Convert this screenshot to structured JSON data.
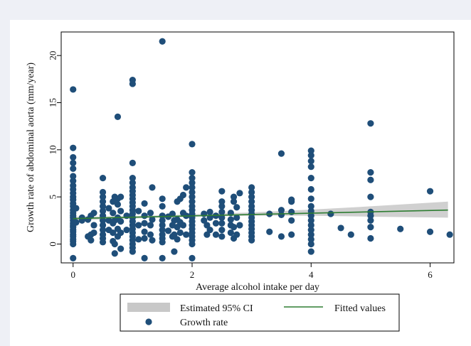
{
  "chart_data": {
    "type": "scatter",
    "xlabel": "Average alcohol intake per day",
    "ylabel": "Growth rate of abdominal aorta (mm/year)",
    "xlim": [
      -0.2,
      6.4
    ],
    "ylim": [
      -2,
      22.5
    ],
    "xticks": [
      "0",
      "2",
      "4",
      "6"
    ],
    "yticks": [
      "0",
      "5",
      "10",
      "15",
      "20"
    ],
    "xtick_values": [
      0,
      2,
      4,
      6
    ],
    "ytick_values": [
      0,
      5,
      10,
      15,
      20
    ],
    "grid": false,
    "legend_position": "bottom",
    "colors": {
      "points": "#1f4e79",
      "ci_band": "#c8c8c8",
      "fitted_line": "#2e7d32"
    },
    "legend": [
      {
        "label": "Estimated 95% CI",
        "kind": "band"
      },
      {
        "label": "Fitted values",
        "kind": "line"
      },
      {
        "label": "Growth rate",
        "kind": "point"
      }
    ],
    "fitted_line": {
      "x": [
        0,
        6.3
      ],
      "y": [
        2.7,
        3.6
      ]
    },
    "ci_band": {
      "x": [
        0,
        1,
        2,
        3,
        4,
        5,
        6.3
      ],
      "lower": [
        2.5,
        2.7,
        2.9,
        3.0,
        3.0,
        2.9,
        2.8
      ],
      "upper": [
        2.9,
        2.95,
        3.15,
        3.35,
        3.65,
        4.0,
        4.5
      ]
    },
    "series": [
      {
        "name": "Growth rate",
        "points": [
          [
            0,
            -1.5
          ],
          [
            0,
            0
          ],
          [
            0,
            0.3
          ],
          [
            0,
            0.5
          ],
          [
            0,
            0.8
          ],
          [
            0,
            1.0
          ],
          [
            0,
            1.3
          ],
          [
            0,
            1.5
          ],
          [
            0,
            1.8
          ],
          [
            0,
            2.0
          ],
          [
            0,
            2.2
          ],
          [
            0,
            2.5
          ],
          [
            0,
            2.8
          ],
          [
            0,
            3.0
          ],
          [
            0,
            3.3
          ],
          [
            0,
            3.6
          ],
          [
            0,
            4.0
          ],
          [
            0,
            4.3
          ],
          [
            0,
            4.7
          ],
          [
            0,
            5.0
          ],
          [
            0,
            5.4
          ],
          [
            0,
            5.8
          ],
          [
            0,
            6.2
          ],
          [
            0,
            6.7
          ],
          [
            0,
            7.2
          ],
          [
            0,
            8.0
          ],
          [
            0,
            8.6
          ],
          [
            0,
            9.2
          ],
          [
            0,
            10.2
          ],
          [
            0,
            16.4
          ],
          [
            0.05,
            2.3
          ],
          [
            0.05,
            3.8
          ],
          [
            0.15,
            2.5
          ],
          [
            0.15,
            2.8
          ],
          [
            0.25,
            2.6
          ],
          [
            0.25,
            0.8
          ],
          [
            0.3,
            0.4
          ],
          [
            0.3,
            1.0
          ],
          [
            0.3,
            3.0
          ],
          [
            0.35,
            2.0
          ],
          [
            0.35,
            3.3
          ],
          [
            0.35,
            1.2
          ],
          [
            0.5,
            0.2
          ],
          [
            0.5,
            0.6
          ],
          [
            0.5,
            1.0
          ],
          [
            0.5,
            1.5
          ],
          [
            0.5,
            2.0
          ],
          [
            0.5,
            2.5
          ],
          [
            0.5,
            3.0
          ],
          [
            0.5,
            3.5
          ],
          [
            0.5,
            4.0
          ],
          [
            0.5,
            4.5
          ],
          [
            0.5,
            5.0
          ],
          [
            0.5,
            5.5
          ],
          [
            0.5,
            7.0
          ],
          [
            0.6,
            1.5
          ],
          [
            0.6,
            2.5
          ],
          [
            0.6,
            3.8
          ],
          [
            0.67,
            0.3
          ],
          [
            0.67,
            1.2
          ],
          [
            0.67,
            2.2
          ],
          [
            0.67,
            3.3
          ],
          [
            0.67,
            4.5
          ],
          [
            0.7,
            -1.0
          ],
          [
            0.7,
            0
          ],
          [
            0.7,
            2.5
          ],
          [
            0.7,
            5.0
          ],
          [
            0.75,
            0.8
          ],
          [
            0.75,
            1.6
          ],
          [
            0.75,
            2.8
          ],
          [
            0.75,
            4.2
          ],
          [
            0.75,
            4.8
          ],
          [
            0.75,
            13.5
          ],
          [
            0.8,
            -0.5
          ],
          [
            0.8,
            1.2
          ],
          [
            0.8,
            2.4
          ],
          [
            0.8,
            3.5
          ],
          [
            0.8,
            5.0
          ],
          [
            0.9,
            1.5
          ],
          [
            0.9,
            3.0
          ],
          [
            1,
            -0.8
          ],
          [
            1,
            -0.4
          ],
          [
            1,
            0
          ],
          [
            1,
            0.4
          ],
          [
            1,
            0.8
          ],
          [
            1,
            1.2
          ],
          [
            1,
            1.6
          ],
          [
            1,
            2.0
          ],
          [
            1,
            2.4
          ],
          [
            1,
            2.8
          ],
          [
            1,
            3.2
          ],
          [
            1,
            3.6
          ],
          [
            1,
            4.0
          ],
          [
            1,
            4.4
          ],
          [
            1,
            4.8
          ],
          [
            1,
            5.2
          ],
          [
            1,
            5.6
          ],
          [
            1,
            6.0
          ],
          [
            1,
            6.5
          ],
          [
            1,
            7.0
          ],
          [
            1,
            8.6
          ],
          [
            1,
            17.0
          ],
          [
            1,
            17.4
          ],
          [
            1.1,
            0.5
          ],
          [
            1.1,
            2.0
          ],
          [
            1.1,
            3.5
          ],
          [
            1.2,
            -1.5
          ],
          [
            1.2,
            0.6
          ],
          [
            1.2,
            1.3
          ],
          [
            1.2,
            2.2
          ],
          [
            1.2,
            3.0
          ],
          [
            1.2,
            4.3
          ],
          [
            1.3,
            1.0
          ],
          [
            1.3,
            2.0
          ],
          [
            1.3,
            3.3
          ],
          [
            1.33,
            0.4
          ],
          [
            1.33,
            2.6
          ],
          [
            1.33,
            6.0
          ],
          [
            1.5,
            -1.5
          ],
          [
            1.5,
            0.2
          ],
          [
            1.5,
            0.6
          ],
          [
            1.5,
            1.0
          ],
          [
            1.5,
            1.5
          ],
          [
            1.5,
            2.0
          ],
          [
            1.5,
            2.5
          ],
          [
            1.5,
            3.0
          ],
          [
            1.5,
            4.0
          ],
          [
            1.5,
            4.8
          ],
          [
            1.5,
            21.5
          ],
          [
            1.6,
            1.4
          ],
          [
            1.6,
            2.9
          ],
          [
            1.67,
            0.8
          ],
          [
            1.67,
            2.0
          ],
          [
            1.67,
            3.2
          ],
          [
            1.7,
            -0.8
          ],
          [
            1.7,
            1.0
          ],
          [
            1.7,
            2.5
          ],
          [
            1.75,
            0.5
          ],
          [
            1.75,
            1.8
          ],
          [
            1.75,
            2.6
          ],
          [
            1.75,
            4.5
          ],
          [
            1.8,
            1.2
          ],
          [
            1.8,
            2.3
          ],
          [
            1.8,
            4.8
          ],
          [
            1.85,
            2.0
          ],
          [
            1.85,
            3.3
          ],
          [
            1.85,
            5.2
          ],
          [
            1.9,
            1.0
          ],
          [
            1.9,
            3.0
          ],
          [
            1.9,
            6.0
          ],
          [
            2,
            -1.5
          ],
          [
            2,
            0
          ],
          [
            2,
            0.4
          ],
          [
            2,
            0.8
          ],
          [
            2,
            1.2
          ],
          [
            2,
            1.6
          ],
          [
            2,
            2.0
          ],
          [
            2,
            2.4
          ],
          [
            2,
            2.8
          ],
          [
            2,
            3.2
          ],
          [
            2,
            3.6
          ],
          [
            2,
            4.0
          ],
          [
            2,
            4.5
          ],
          [
            2,
            5.0
          ],
          [
            2,
            5.5
          ],
          [
            2,
            6.0
          ],
          [
            2,
            6.5
          ],
          [
            2,
            7.0
          ],
          [
            2,
            7.6
          ],
          [
            2,
            10.6
          ],
          [
            2.2,
            2.5
          ],
          [
            2.2,
            3.2
          ],
          [
            2.25,
            1.0
          ],
          [
            2.25,
            2.0
          ],
          [
            2.3,
            1.5
          ],
          [
            2.3,
            2.8
          ],
          [
            2.3,
            3.4
          ],
          [
            2.4,
            1.0
          ],
          [
            2.4,
            2.2
          ],
          [
            2.4,
            3.0
          ],
          [
            2.5,
            0.8
          ],
          [
            2.5,
            1.5
          ],
          [
            2.5,
            2.2
          ],
          [
            2.5,
            2.8
          ],
          [
            2.5,
            3.4
          ],
          [
            2.5,
            4.0
          ],
          [
            2.5,
            4.5
          ],
          [
            2.5,
            5.6
          ],
          [
            2.65,
            1.2
          ],
          [
            2.65,
            2.0
          ],
          [
            2.65,
            2.6
          ],
          [
            2.65,
            3.3
          ],
          [
            2.7,
            0.6
          ],
          [
            2.7,
            1.8
          ],
          [
            2.7,
            4.5
          ],
          [
            2.7,
            5.0
          ],
          [
            2.75,
            1.0
          ],
          [
            2.75,
            2.8
          ],
          [
            2.75,
            3.9
          ],
          [
            2.8,
            2.0
          ],
          [
            2.8,
            5.4
          ],
          [
            3,
            0.4
          ],
          [
            3,
            0.8
          ],
          [
            3,
            1.2
          ],
          [
            3,
            1.6
          ],
          [
            3,
            2.0
          ],
          [
            3,
            2.4
          ],
          [
            3,
            2.8
          ],
          [
            3,
            3.2
          ],
          [
            3,
            3.6
          ],
          [
            3,
            4.0
          ],
          [
            3,
            4.5
          ],
          [
            3,
            5.0
          ],
          [
            3,
            5.5
          ],
          [
            3,
            6.0
          ],
          [
            3.3,
            1.3
          ],
          [
            3.3,
            3.2
          ],
          [
            3.5,
            0.8
          ],
          [
            3.5,
            3.1
          ],
          [
            3.5,
            3.6
          ],
          [
            3.5,
            9.6
          ],
          [
            3.67,
            1.0
          ],
          [
            3.67,
            2.5
          ],
          [
            3.67,
            3.4
          ],
          [
            3.67,
            4.5
          ],
          [
            3.67,
            4.7
          ],
          [
            4,
            -0.8
          ],
          [
            4,
            0
          ],
          [
            4,
            0.5
          ],
          [
            4,
            1.0
          ],
          [
            4,
            1.5
          ],
          [
            4,
            2.0
          ],
          [
            4,
            2.5
          ],
          [
            4,
            3.0
          ],
          [
            4,
            3.5
          ],
          [
            4,
            4.0
          ],
          [
            4,
            4.8
          ],
          [
            4,
            5.8
          ],
          [
            4,
            7.0
          ],
          [
            4,
            8.2
          ],
          [
            4,
            8.8
          ],
          [
            4,
            9.4
          ],
          [
            4,
            9.9
          ],
          [
            4.33,
            3.2
          ],
          [
            4.5,
            1.7
          ],
          [
            4.67,
            1.0
          ],
          [
            5,
            0.6
          ],
          [
            5,
            1.8
          ],
          [
            5,
            2.5
          ],
          [
            5,
            3.0
          ],
          [
            5,
            3.4
          ],
          [
            5,
            5.0
          ],
          [
            5,
            6.8
          ],
          [
            5,
            7.6
          ],
          [
            5,
            12.8
          ],
          [
            5.5,
            1.6
          ],
          [
            6,
            1.3
          ],
          [
            6,
            5.6
          ],
          [
            6.33,
            1.0
          ]
        ]
      }
    ]
  }
}
